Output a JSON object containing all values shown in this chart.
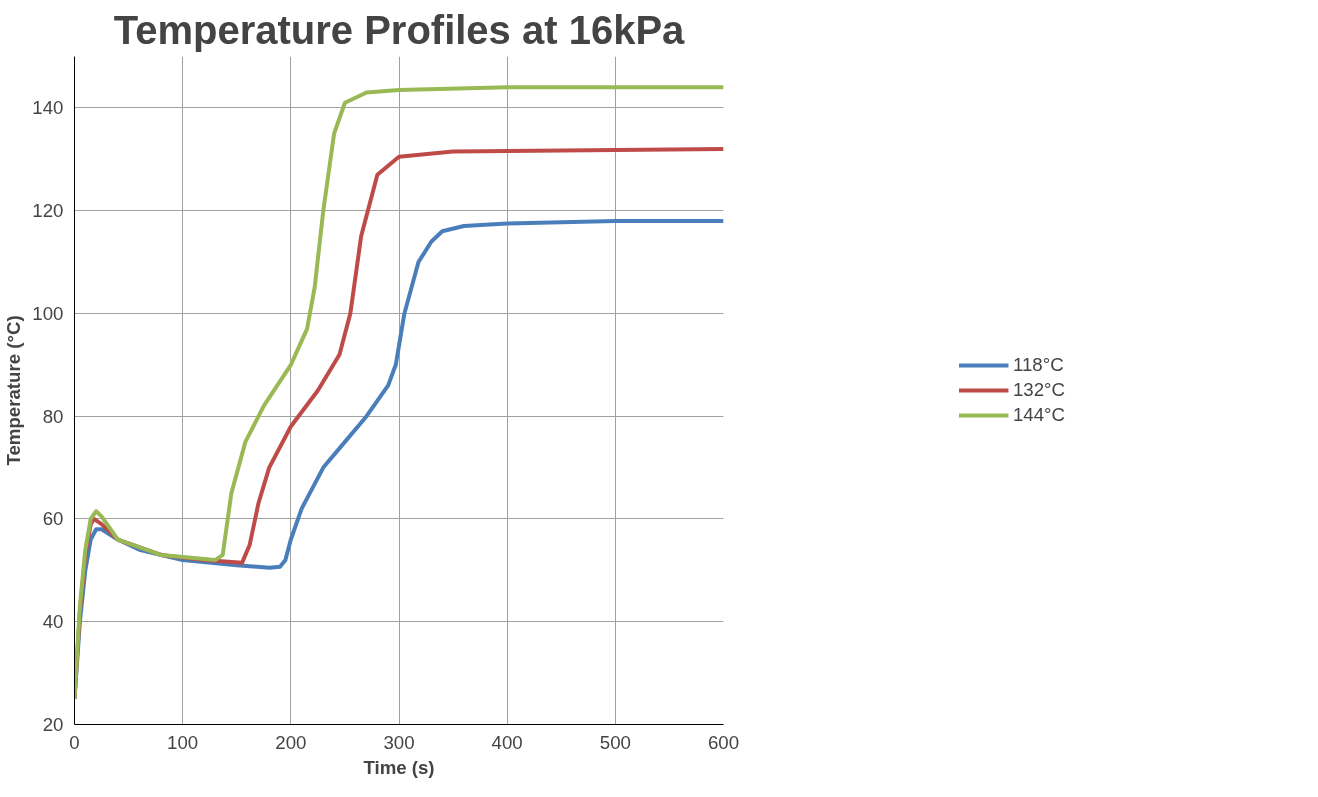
{
  "chart_data": {
    "type": "line",
    "title": "Temperature Profiles at 16kPa",
    "xlabel": "Time (s)",
    "ylabel": "Temperature (°C)",
    "xlim": [
      0,
      600
    ],
    "xticks": [
      0,
      100,
      200,
      300,
      400,
      500,
      600
    ],
    "ylim": [
      20,
      150
    ],
    "yticks": [
      20,
      40,
      60,
      80,
      100,
      120,
      140
    ],
    "grid": true,
    "legend": "right",
    "marker": "none",
    "line_style": "solid",
    "series": [
      {
        "name": "118°C",
        "color": "#4a7ebb",
        "x": [
          0,
          5,
          10,
          15,
          20,
          25,
          40,
          60,
          100,
          150,
          180,
          190,
          195,
          200,
          210,
          230,
          250,
          270,
          290,
          297,
          305,
          318,
          330,
          340,
          360,
          400,
          500,
          600
        ],
        "values": [
          25,
          40,
          50,
          56,
          58,
          58,
          56,
          54,
          52,
          51,
          50.5,
          50.7,
          52,
          56,
          62,
          70,
          75,
          80,
          86,
          90,
          100,
          110,
          114,
          116,
          117,
          117.5,
          118,
          118
        ]
      },
      {
        "name": "132°C",
        "color": "#be4b48",
        "x": [
          0,
          5,
          10,
          15,
          18,
          25,
          40,
          80,
          120,
          155,
          162,
          170,
          180,
          200,
          225,
          245,
          255,
          265,
          280,
          300,
          350,
          600
        ],
        "values": [
          25,
          42,
          53,
          59,
          60,
          59,
          56,
          53,
          52,
          51.5,
          55,
          63,
          70,
          78,
          85,
          92,
          100,
          115,
          127,
          130.5,
          131.5,
          132
        ]
      },
      {
        "name": "144°C",
        "color": "#98b954",
        "x": [
          0,
          5,
          10,
          15,
          20,
          25,
          40,
          80,
          130,
          137,
          145,
          158,
          175,
          200,
          215,
          222,
          230,
          240,
          250,
          270,
          300,
          400,
          600
        ],
        "values": [
          25,
          43,
          54,
          60,
          61.5,
          60.5,
          56,
          53,
          52,
          53,
          65,
          75,
          82,
          90,
          97,
          105,
          120,
          135,
          141,
          143,
          143.5,
          144,
          144
        ]
      }
    ]
  }
}
